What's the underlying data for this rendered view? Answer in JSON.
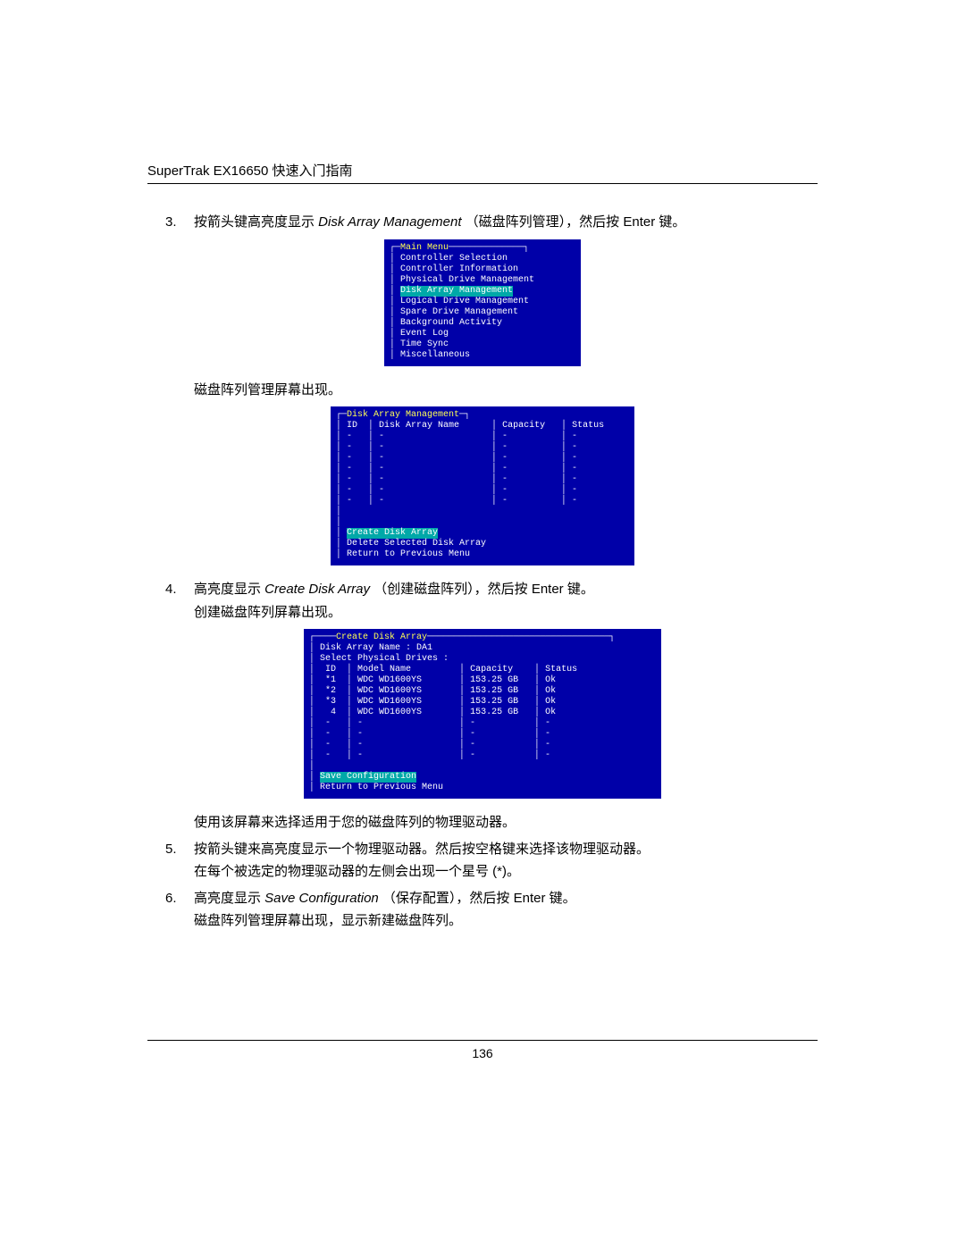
{
  "page": {
    "header": "SuperTrak EX16650 快速入门指南",
    "page_number": "136"
  },
  "steps": {
    "s3_num": "3.",
    "s3_text_a": "按箭头键高亮度显示 ",
    "s3_text_em": "Disk Array Management",
    "s3_text_b": " （磁盘阵列管理），然后按 Enter 键。",
    "s3_after": "磁盘阵列管理屏幕出现。",
    "s4_num": "4.",
    "s4_text_a": "高亮度显示 ",
    "s4_text_em": "Create Disk Array",
    "s4_text_b": " （创建磁盘阵列），然后按 Enter 键。",
    "s4_after": "创建磁盘阵列屏幕出现。",
    "s4_note": "使用该屏幕来选择适用于您的磁盘阵列的物理驱动器。",
    "s5_num": "5.",
    "s5_text": "按箭头键来高亮度显示一个物理驱动器。然后按空格键来选择该物理驱动器。",
    "s5_note": "在每个被选定的物理驱动器的左侧会出现一个星号 (*)。",
    "s6_num": "6.",
    "s6_text_a": "高亮度显示 ",
    "s6_text_em": "Save Configuration",
    "s6_text_b": " （保存配置），然后按 Enter 键。",
    "s6_after": "磁盘阵列管理屏幕出现，显示新建磁盘阵列。"
  },
  "bios1": {
    "title": "Main Menu",
    "items": [
      "Controller Selection",
      "Controller Information",
      "Physical Drive Management"
    ],
    "highlighted": "Disk Array Management",
    "items2": [
      "Logical Drive Management",
      "Spare Drive Management",
      "Background Activity",
      "Event Log",
      "Time Sync",
      "Miscellaneous"
    ]
  },
  "bios2": {
    "title": "Disk Array Management",
    "col_id": "ID",
    "col_name": "Disk Array Name",
    "col_cap": "Capacity",
    "col_status": "Status",
    "action_hl": "Create Disk Array",
    "action2": "Delete Selected Disk Array",
    "action3": "Return to Previous Menu"
  },
  "bios3": {
    "title": "Create Disk Array",
    "line1": "Disk Array Name : DA1",
    "line2": "Select Physical Drives :",
    "col_id": "ID",
    "col_model": "Model Name",
    "col_cap": "Capacity",
    "col_status": "Status",
    "rows": [
      {
        "id": "*1",
        "model": "WDC WD1600YS",
        "cap": "153.25 GB",
        "status": "Ok"
      },
      {
        "id": "*2",
        "model": "WDC WD1600YS",
        "cap": "153.25 GB",
        "status": "Ok"
      },
      {
        "id": "*3",
        "model": "WDC WD1600YS",
        "cap": "153.25 GB",
        "status": "Ok"
      },
      {
        "id": " 4",
        "model": "WDC WD1600YS",
        "cap": "153.25 GB",
        "status": "Ok"
      }
    ],
    "action_hl": "Save Configuration",
    "action2": "Return to Previous Menu"
  },
  "colors": {
    "bios_bg": "#0000a8",
    "bios_text": "#ffffff",
    "bios_title": "#ffff55",
    "bios_highlight_bg": "#00a8a8",
    "bios_cyan": "#55ffff"
  }
}
